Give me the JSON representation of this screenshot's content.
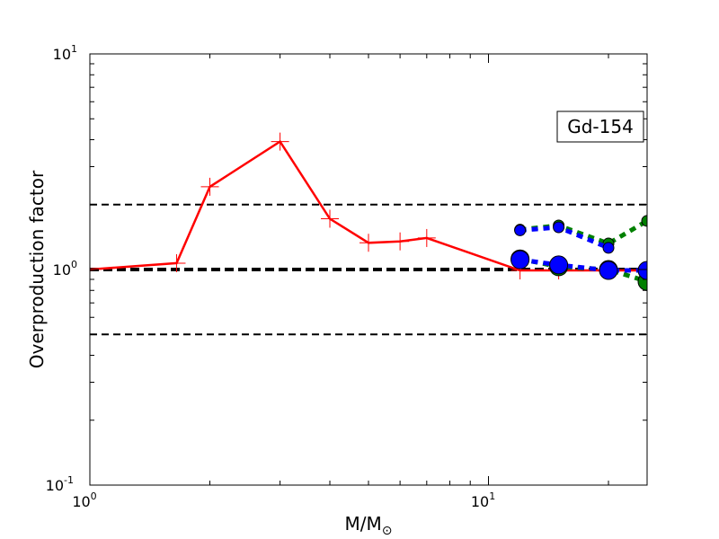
{
  "chart_data": {
    "type": "line",
    "xscale": "log",
    "yscale": "log",
    "xlim": [
      1,
      25
    ],
    "ylim": [
      0.1,
      10
    ],
    "xticks": [
      {
        "value": 1,
        "base": "10",
        "exp": "0"
      },
      {
        "value": 10,
        "base": "10",
        "exp": "1"
      }
    ],
    "yticks": [
      {
        "value": 0.1,
        "base": "10",
        "exp": "-1"
      },
      {
        "value": 1,
        "base": "10",
        "exp": "0"
      },
      {
        "value": 10,
        "base": "10",
        "exp": "1"
      }
    ],
    "xlabel": "M/M",
    "xlabel_sub": "⊙",
    "ylabel": "Overproduction factor",
    "annotation": "Gd-154",
    "reference_lines": [
      {
        "y": 2.0,
        "color": "#000000",
        "style": "dashed",
        "weight": "thin"
      },
      {
        "y": 1.0,
        "color": "#000000",
        "style": "dashed",
        "weight": "thick"
      },
      {
        "y": 0.5,
        "color": "#000000",
        "style": "dashed",
        "weight": "thin"
      }
    ],
    "series": [
      {
        "color": "#ff0000",
        "line_style": "solid",
        "marker": "plus",
        "x": [
          1.0,
          1.65,
          2.0,
          3.0,
          4.0,
          5.0,
          6.0,
          7.0,
          12.0,
          15.0,
          20.0,
          25.0
        ],
        "y": [
          1.0,
          1.07,
          2.42,
          3.92,
          1.72,
          1.33,
          1.35,
          1.4,
          0.99,
          0.99,
          0.99,
          0.99
        ]
      },
      {
        "color": "#008000",
        "line_style": "dotted",
        "marker": "circle",
        "marker_size": "small",
        "x": [
          12.0,
          15.0,
          20.0,
          25.0
        ],
        "y": [
          1.53,
          1.6,
          1.32,
          1.68
        ]
      },
      {
        "color": "#0000ff",
        "line_style": "dotted",
        "marker": "circle",
        "marker_size": "small",
        "x": [
          12.0,
          15.0,
          20.0
        ],
        "y": [
          1.52,
          1.57,
          1.26
        ]
      },
      {
        "color": "#008000",
        "line_style": "dotted",
        "marker": "circle",
        "marker_size": "large",
        "x": [
          12.0,
          15.0,
          20.0,
          25.0
        ],
        "y": [
          1.12,
          1.03,
          1.0,
          0.88
        ]
      },
      {
        "color": "#0000ff",
        "line_style": "dotted",
        "marker": "circle",
        "marker_size": "large",
        "x": [
          12.0,
          15.0,
          20.0,
          25.0
        ],
        "y": [
          1.11,
          1.05,
          0.99,
          0.99
        ]
      }
    ]
  }
}
